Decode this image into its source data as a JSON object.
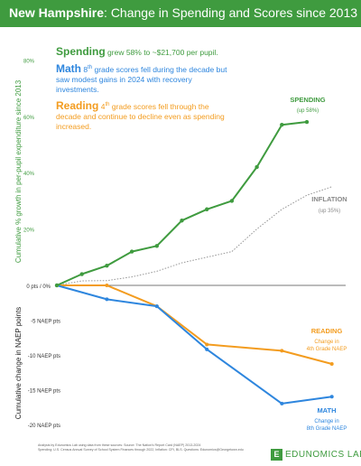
{
  "title": {
    "state": "New Hampshire",
    "rest": ": Change in Spending and Scores since 2013"
  },
  "annotations": {
    "spending": {
      "lead": "Spending",
      "text": " grew 58% to ~$21,700 per pupil.",
      "color": "#3f9b3f"
    },
    "math": {
      "lead": "Math",
      "sup_pre": " 8",
      "sup": "th",
      "text": " grade scores fell during the decade but saw modest gains in 2024 with recovery investments.",
      "color": "#2e86de"
    },
    "reading": {
      "lead": "Reading",
      "sup_pre": " 4",
      "sup": "th",
      "text": " grade scores fell through the decade and continue to decline even as spending increased.",
      "color": "#f39c1f"
    }
  },
  "series_labels": {
    "spending": {
      "name": "SPENDING",
      "sub": "(up 58%)"
    },
    "inflation": {
      "name": "INFLATION",
      "sub": "(up 35%)"
    },
    "reading": {
      "name": "READING",
      "sub1": "Change in",
      "sub2": "4th Grade NAEP"
    },
    "math": {
      "name": "MATH",
      "sub1": "Change in",
      "sub2": "8th Grade NAEP"
    }
  },
  "footer": {
    "line1": "Analysis by Edunomics Lab using data from these sources: Source: The Nation's Report Card (NAEP) 2013-2024",
    "line2": "Spending: U.S. Census Annual Survey of School System Finances through 2022, Inflation: CPI, BLS. Questions: Edunomics@Georgetown.edu"
  },
  "logo": {
    "mark": "E",
    "text": "EDUNOMICS LAB"
  },
  "chart_data": {
    "type": "line",
    "x": [
      2013,
      2014,
      2015,
      2016,
      2017,
      2018,
      2019,
      2020,
      2021,
      2022,
      2023,
      2024
    ],
    "upper_panel": {
      "ylabel": "Cumulative % growth in per-pupil expenditure since 2013",
      "ylim": [
        0,
        80
      ],
      "ticks": [
        {
          "value": 0,
          "label": "0 pts / 0%"
        },
        {
          "value": 20,
          "label": "20%"
        },
        {
          "value": 40,
          "label": "40%"
        },
        {
          "value": 60,
          "label": "60%"
        },
        {
          "value": 80,
          "label": "80%"
        }
      ],
      "series": [
        {
          "name": "SPENDING",
          "color": "#3f9b3f",
          "markers": true,
          "x": [
            2013,
            2014,
            2015,
            2016,
            2017,
            2018,
            2019,
            2020,
            2021,
            2022,
            2023
          ],
          "values": [
            0,
            4,
            7,
            12,
            14,
            23,
            27,
            30,
            42,
            57,
            58
          ]
        },
        {
          "name": "INFLATION",
          "color": "#999999",
          "dashed": true,
          "x": [
            2013,
            2014,
            2015,
            2016,
            2017,
            2018,
            2019,
            2020,
            2021,
            2022,
            2023,
            2024
          ],
          "values": [
            0,
            1.6,
            1.7,
            3,
            5,
            8,
            10,
            12,
            20,
            27,
            32,
            35
          ]
        }
      ]
    },
    "lower_panel": {
      "ylabel": "Cumulative change in NAEP points",
      "ylim": [
        -20,
        0
      ],
      "ticks": [
        {
          "value": -5,
          "label": "-5 NAEP pts"
        },
        {
          "value": -10,
          "label": "-10 NAEP pts"
        },
        {
          "value": -15,
          "label": "-15 NAEP pts"
        },
        {
          "value": -20,
          "label": "-20 NAEP pts"
        }
      ],
      "series": [
        {
          "name": "READING",
          "color": "#f39c1f",
          "x": [
            2013,
            2015,
            2017,
            2019,
            2022,
            2024
          ],
          "values": [
            0,
            0,
            -3,
            -8.5,
            -9.4,
            -11.3
          ]
        },
        {
          "name": "MATH",
          "color": "#2e86de",
          "x": [
            2013,
            2015,
            2017,
            2019,
            2022,
            2024
          ],
          "values": [
            0,
            -2,
            -3,
            -9.2,
            -17,
            -16
          ]
        }
      ]
    }
  }
}
